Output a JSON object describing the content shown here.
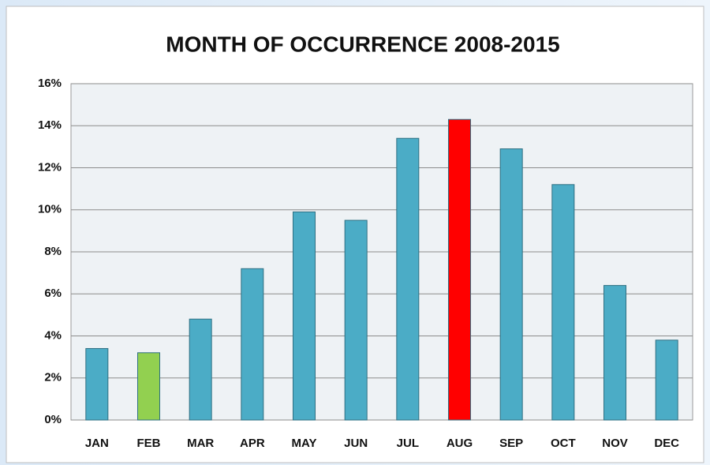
{
  "chart_data": {
    "type": "bar",
    "title": "MONTH OF OCCURRENCE 2008-2015",
    "categories": [
      "JAN",
      "FEB",
      "MAR",
      "APR",
      "MAY",
      "JUN",
      "JUL",
      "AUG",
      "SEP",
      "OCT",
      "NOV",
      "DEC"
    ],
    "values": [
      3.4,
      3.2,
      4.8,
      7.2,
      9.9,
      9.5,
      13.4,
      14.3,
      12.9,
      11.2,
      6.4,
      3.8
    ],
    "colors": [
      "#4bacc6",
      "#92d050",
      "#4bacc6",
      "#4bacc6",
      "#4bacc6",
      "#4bacc6",
      "#4bacc6",
      "#ff0000",
      "#4bacc6",
      "#4bacc6",
      "#4bacc6",
      "#4bacc6"
    ],
    "ylim": [
      0,
      16
    ],
    "yticks": [
      {
        "value": 0,
        "label": "0%"
      },
      {
        "value": 2,
        "label": "2%"
      },
      {
        "value": 4,
        "label": "4%"
      },
      {
        "value": 6,
        "label": "6%"
      },
      {
        "value": 8,
        "label": "8%"
      },
      {
        "value": 10,
        "label": "10%"
      },
      {
        "value": 12,
        "label": "12%"
      },
      {
        "value": 14,
        "label": "14%"
      },
      {
        "value": 16,
        "label": "16%"
      }
    ],
    "grid": true
  }
}
